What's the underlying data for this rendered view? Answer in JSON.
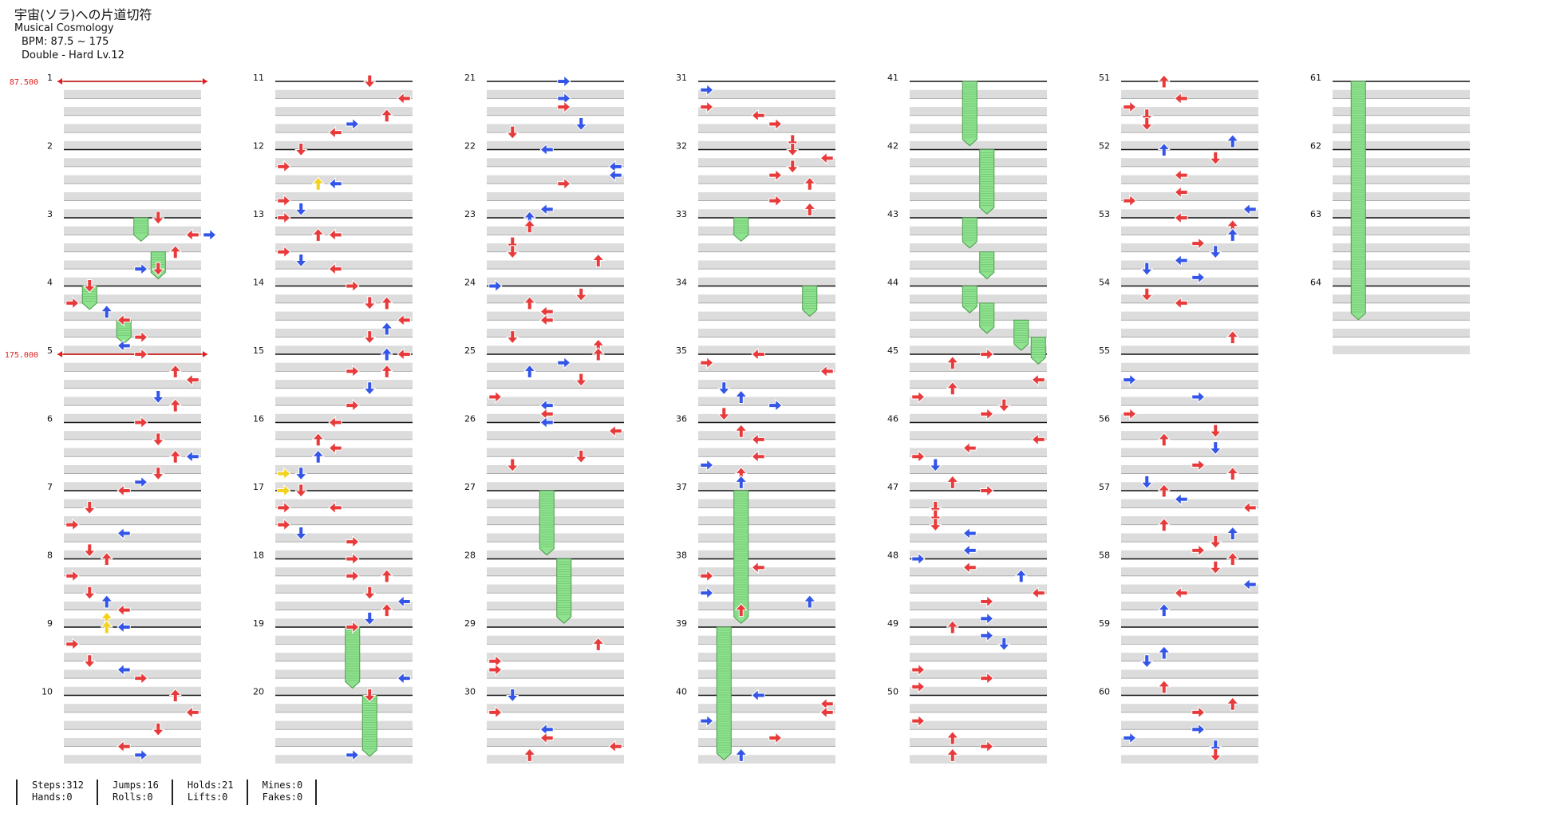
{
  "song": {
    "title": "宇宙(ソラ)への片道切符",
    "subtitle": "Musical Cosmology",
    "bpm_text": "BPM: 87.5 ~ 175",
    "difficulty_text": "Double - Hard  Lv.12"
  },
  "bpm_markers": [
    {
      "measure": 1,
      "label": "87.500"
    },
    {
      "measure": 5,
      "label": "175.000"
    }
  ],
  "colors": {
    "note_red": "#e83a3a",
    "note_blue": "#3355e8",
    "note_yellow": "#f3d21c",
    "hold_green": "#8fe28f",
    "stripe": "#dcdcdc",
    "bpm_red": "#e02020"
  },
  "chart": {
    "measures_per_column": 10,
    "total_measures": 64,
    "notes": [
      {
        "m": 3,
        "b": 0,
        "lane": 5,
        "c": "r"
      },
      {
        "m": 3,
        "b": 0.25,
        "lane": 7,
        "c": "r"
      },
      {
        "m": 3,
        "b": 0.25,
        "lane": 8,
        "c": "b"
      },
      {
        "m": 3,
        "b": 0.5,
        "lane": 6,
        "c": "r"
      },
      {
        "m": 3,
        "b": 0.75,
        "lane": 4,
        "c": "b"
      },
      {
        "m": 3,
        "b": 0.75,
        "lane": 5,
        "c": "r"
      },
      {
        "m": 4,
        "b": 0,
        "lane": 1,
        "c": "r"
      },
      {
        "m": 4,
        "b": 0.25,
        "lane": 0,
        "c": "r"
      },
      {
        "m": 4,
        "b": 0.375,
        "lane": 2,
        "c": "b"
      },
      {
        "m": 4,
        "b": 0.5,
        "lane": 3,
        "c": "r"
      },
      {
        "m": 4,
        "b": 0.75,
        "lane": 4,
        "c": "r"
      },
      {
        "m": 4,
        "b": 0.875,
        "lane": 3,
        "c": "b"
      },
      {
        "m": 5,
        "b": 0,
        "lane": 4,
        "c": "r"
      },
      {
        "m": 5,
        "b": 0.25,
        "lane": 6,
        "c": "r"
      },
      {
        "m": 5,
        "b": 0.375,
        "lane": 7,
        "c": "r"
      },
      {
        "m": 5,
        "b": 0.625,
        "lane": 5,
        "c": "b"
      },
      {
        "m": 5,
        "b": 0.75,
        "lane": 6,
        "c": "r"
      },
      {
        "m": 6,
        "b": 0,
        "lane": 4,
        "c": "r"
      },
      {
        "m": 6,
        "b": 0.25,
        "lane": 5,
        "c": "r"
      },
      {
        "m": 6,
        "b": 0.5,
        "lane": 6,
        "c": "r"
      },
      {
        "m": 6,
        "b": 0.5,
        "lane": 7,
        "c": "b"
      },
      {
        "m": 6,
        "b": 0.75,
        "lane": 5,
        "c": "r"
      },
      {
        "m": 6,
        "b": 0.875,
        "lane": 4,
        "c": "b"
      },
      {
        "m": 7,
        "b": 0,
        "lane": 3,
        "c": "r"
      },
      {
        "m": 7,
        "b": 0.25,
        "lane": 1,
        "c": "r"
      },
      {
        "m": 7,
        "b": 0.5,
        "lane": 0,
        "c": "r"
      },
      {
        "m": 7,
        "b": 0.625,
        "lane": 3,
        "c": "b"
      },
      {
        "m": 7,
        "b": 0.875,
        "lane": 1,
        "c": "r"
      },
      {
        "m": 8,
        "b": 0,
        "lane": 2,
        "c": "r"
      },
      {
        "m": 8,
        "b": 0.25,
        "lane": 0,
        "c": "r"
      },
      {
        "m": 8,
        "b": 0.5,
        "lane": 1,
        "c": "r"
      },
      {
        "m": 8,
        "b": 0.625,
        "lane": 2,
        "c": "b"
      },
      {
        "m": 8,
        "b": 0.75,
        "lane": 3,
        "c": "r"
      },
      {
        "m": 8,
        "b": 0.875,
        "lane": 2,
        "c": "y"
      },
      {
        "m": 9,
        "b": 0,
        "lane": 2,
        "c": "y"
      },
      {
        "m": 9,
        "b": 0,
        "lane": 3,
        "c": "b"
      },
      {
        "m": 9,
        "b": 0.25,
        "lane": 0,
        "c": "r"
      },
      {
        "m": 9,
        "b": 0.5,
        "lane": 1,
        "c": "r"
      },
      {
        "m": 9,
        "b": 0.625,
        "lane": 3,
        "c": "b"
      },
      {
        "m": 9,
        "b": 0.75,
        "lane": 4,
        "c": "r"
      },
      {
        "m": 10,
        "b": 0,
        "lane": 6,
        "c": "r"
      },
      {
        "m": 10,
        "b": 0.25,
        "lane": 7,
        "c": "r"
      },
      {
        "m": 10,
        "b": 0.5,
        "lane": 5,
        "c": "r"
      },
      {
        "m": 10,
        "b": 0.75,
        "lane": 3,
        "c": "r"
      },
      {
        "m": 10,
        "b": 0.875,
        "lane": 4,
        "c": "b"
      },
      {
        "m": 11,
        "b": 0,
        "lane": 5,
        "c": "r"
      },
      {
        "m": 11,
        "b": 0.25,
        "lane": 7,
        "c": "r"
      },
      {
        "m": 11,
        "b": 0.5,
        "lane": 6,
        "c": "r"
      },
      {
        "m": 11,
        "b": 0.625,
        "lane": 4,
        "c": "b"
      },
      {
        "m": 11,
        "b": 0.75,
        "lane": 3,
        "c": "r"
      },
      {
        "m": 12,
        "b": 0,
        "lane": 1,
        "c": "r"
      },
      {
        "m": 12,
        "b": 0.25,
        "lane": 0,
        "c": "r"
      },
      {
        "m": 12,
        "b": 0.5,
        "lane": 2,
        "c": "y"
      },
      {
        "m": 12,
        "b": 0.5,
        "lane": 3,
        "c": "b"
      },
      {
        "m": 12,
        "b": 0.75,
        "lane": 0,
        "c": "r"
      },
      {
        "m": 12,
        "b": 0.875,
        "lane": 1,
        "c": "b"
      },
      {
        "m": 13,
        "b": 0,
        "lane": 0,
        "c": "r"
      },
      {
        "m": 13,
        "b": 0.25,
        "lane": 2,
        "c": "r"
      },
      {
        "m": 13,
        "b": 0.25,
        "lane": 3,
        "c": "r"
      },
      {
        "m": 13,
        "b": 0.5,
        "lane": 0,
        "c": "r"
      },
      {
        "m": 13,
        "b": 0.625,
        "lane": 1,
        "c": "b"
      },
      {
        "m": 13,
        "b": 0.75,
        "lane": 3,
        "c": "r"
      },
      {
        "m": 14,
        "b": 0,
        "lane": 4,
        "c": "r"
      },
      {
        "m": 14,
        "b": 0.25,
        "lane": 5,
        "c": "r"
      },
      {
        "m": 14,
        "b": 0.25,
        "lane": 6,
        "c": "r"
      },
      {
        "m": 14,
        "b": 0.5,
        "lane": 7,
        "c": "r"
      },
      {
        "m": 14,
        "b": 0.625,
        "lane": 6,
        "c": "b"
      },
      {
        "m": 14,
        "b": 0.75,
        "lane": 5,
        "c": "r"
      },
      {
        "m": 15,
        "b": 0,
        "lane": 7,
        "c": "r"
      },
      {
        "m": 15,
        "b": 0,
        "lane": 6,
        "c": "b"
      },
      {
        "m": 15,
        "b": 0.25,
        "lane": 4,
        "c": "r"
      },
      {
        "m": 15,
        "b": 0.25,
        "lane": 6,
        "c": "r"
      },
      {
        "m": 15,
        "b": 0.5,
        "lane": 5,
        "c": "b"
      },
      {
        "m": 15,
        "b": 0.75,
        "lane": 4,
        "c": "r"
      },
      {
        "m": 16,
        "b": 0,
        "lane": 3,
        "c": "r"
      },
      {
        "m": 16,
        "b": 0.25,
        "lane": 2,
        "c": "r"
      },
      {
        "m": 16,
        "b": 0.375,
        "lane": 3,
        "c": "r"
      },
      {
        "m": 16,
        "b": 0.5,
        "lane": 2,
        "c": "b"
      },
      {
        "m": 16,
        "b": 0.75,
        "lane": 0,
        "c": "y"
      },
      {
        "m": 16,
        "b": 0.75,
        "lane": 1,
        "c": "b"
      },
      {
        "m": 17,
        "b": 0,
        "lane": 0,
        "c": "y"
      },
      {
        "m": 17,
        "b": 0,
        "lane": 1,
        "c": "r"
      },
      {
        "m": 17,
        "b": 0.25,
        "lane": 0,
        "c": "r"
      },
      {
        "m": 17,
        "b": 0.25,
        "lane": 3,
        "c": "r"
      },
      {
        "m": 17,
        "b": 0.5,
        "lane": 0,
        "c": "r"
      },
      {
        "m": 17,
        "b": 0.625,
        "lane": 1,
        "c": "b"
      },
      {
        "m": 17,
        "b": 0.75,
        "lane": 4,
        "c": "r"
      },
      {
        "m": 18,
        "b": 0,
        "lane": 4,
        "c": "r"
      },
      {
        "m": 18,
        "b": 0.25,
        "lane": 4,
        "c": "r"
      },
      {
        "m": 18,
        "b": 0.25,
        "lane": 6,
        "c": "r"
      },
      {
        "m": 18,
        "b": 0.5,
        "lane": 5,
        "c": "r"
      },
      {
        "m": 18,
        "b": 0.625,
        "lane": 7,
        "c": "b"
      },
      {
        "m": 18,
        "b": 0.75,
        "lane": 6,
        "c": "r"
      },
      {
        "m": 18,
        "b": 0.875,
        "lane": 5,
        "c": "b"
      },
      {
        "m": 19,
        "b": 0,
        "lane": 4,
        "c": "r"
      },
      {
        "m": 19,
        "b": 0.75,
        "lane": 7,
        "c": "b"
      },
      {
        "m": 20,
        "b": 0,
        "lane": 5,
        "c": "r"
      },
      {
        "m": 20,
        "b": 0.875,
        "lane": 4,
        "c": "b"
      }
    ],
    "holds": [
      {
        "m": 3,
        "b": 0,
        "lane": 4,
        "len": 0.25
      },
      {
        "m": 3,
        "b": 0.5,
        "lane": 5,
        "len": 0.3
      },
      {
        "m": 4,
        "b": 0,
        "lane": 1,
        "len": 0.25
      },
      {
        "m": 4,
        "b": 0.5,
        "lane": 3,
        "len": 0.25
      },
      {
        "m": 19,
        "b": 0,
        "lane": 4,
        "len": 0.8
      },
      {
        "m": 20,
        "b": 0,
        "lane": 5,
        "len": 0.8
      },
      {
        "m": 27,
        "b": 0,
        "lane": 3,
        "len": 0.85
      },
      {
        "m": 28,
        "b": 0,
        "lane": 4,
        "len": 0.85
      },
      {
        "m": 33,
        "b": 0,
        "lane": 2,
        "len": 0.25
      },
      {
        "m": 34,
        "b": 0,
        "lane": 6,
        "len": 0.35
      },
      {
        "m": 37,
        "b": 0,
        "lane": 2,
        "len": 1.85
      },
      {
        "m": 39,
        "b": 0,
        "lane": 1,
        "len": 1.85
      },
      {
        "m": 41,
        "b": 0,
        "lane": 3,
        "len": 0.85
      },
      {
        "m": 42,
        "b": 0,
        "lane": 4,
        "len": 0.85
      },
      {
        "m": 43,
        "b": 0,
        "lane": 3,
        "len": 0.35
      },
      {
        "m": 43,
        "b": 0.5,
        "lane": 4,
        "len": 0.3
      },
      {
        "m": 44,
        "b": 0,
        "lane": 3,
        "len": 0.3
      },
      {
        "m": 44,
        "b": 0.25,
        "lane": 4,
        "len": 0.35
      },
      {
        "m": 44,
        "b": 0.5,
        "lane": 6,
        "len": 0.35
      },
      {
        "m": 44,
        "b": 0.75,
        "lane": 7,
        "len": 0.3
      },
      {
        "m": 61,
        "b": 0,
        "lane": 1,
        "len": 3.4
      }
    ],
    "extra_notes_seed": 7
  },
  "stats": [
    {
      "a": "Steps:312",
      "b": "Hands:0"
    },
    {
      "a": "Jumps:16",
      "b": "Rolls:0"
    },
    {
      "a": "Holds:21",
      "b": "Lifts:0"
    },
    {
      "a": "Mines:0",
      "b": "Fakes:0"
    }
  ]
}
